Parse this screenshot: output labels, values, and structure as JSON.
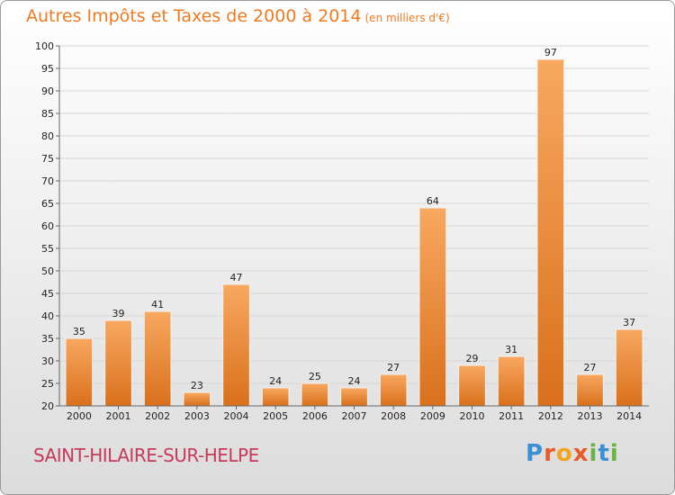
{
  "title": {
    "main": "Autres Impôts et Taxes de 2000 à 2014",
    "unit": "(en milliers d'€)"
  },
  "commune": "SAINT-HILAIRE-SUR-HELPE",
  "logo": {
    "text": "Proxiti",
    "colors": [
      "#3b8fd6",
      "#e85a2a",
      "#f2a51a",
      "#6bb443"
    ]
  },
  "chart_data": {
    "type": "bar",
    "title": "Autres Impôts et Taxes de 2000 à 2014",
    "subtitle": "(en milliers d'€)",
    "xlabel": "",
    "ylabel": "",
    "categories": [
      "2000",
      "2001",
      "2002",
      "2003",
      "2004",
      "2005",
      "2006",
      "2007",
      "2008",
      "2009",
      "2010",
      "2011",
      "2012",
      "2013",
      "2014"
    ],
    "values": [
      35,
      39,
      41,
      23,
      47,
      24,
      25,
      24,
      27,
      64,
      29,
      31,
      97,
      27,
      37
    ],
    "ylim": [
      20,
      100
    ],
    "yticks": [
      20,
      25,
      30,
      35,
      40,
      45,
      50,
      55,
      60,
      65,
      70,
      75,
      80,
      85,
      90,
      95,
      100
    ],
    "grid": true,
    "legend": "none",
    "colors": {
      "bar_top": "#f8a860",
      "bar_bottom": "#d9701c",
      "bar_edge": "#f2f2f2"
    }
  }
}
